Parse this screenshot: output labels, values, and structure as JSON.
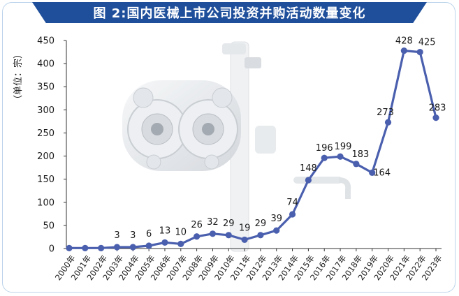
{
  "title": "图 2:国内医械上市公司投资并购活动数量变化",
  "chart_data": {
    "type": "line",
    "title": "图 2:国内医械上市公司投资并购活动数量变化",
    "ylabel": "（单位：宗）",
    "xlabel": "",
    "ylim": [
      0,
      450
    ],
    "yticks": [
      "0",
      "50",
      "100",
      "150",
      "200",
      "250",
      "300",
      "350",
      "400",
      "450"
    ],
    "grid": false,
    "categories": [
      "2000年",
      "2001年",
      "2002年",
      "2003年",
      "2004年",
      "2005年",
      "2006年",
      "2007年",
      "2008年",
      "2009年",
      "2010年",
      "2011年",
      "2012年",
      "2013年",
      "2014年",
      "2015年",
      "2016年",
      "2017年",
      "2018年",
      "2019年",
      "2020年",
      "2021年",
      "2022年",
      "2023年"
    ],
    "values": [
      1,
      1,
      1,
      3,
      3,
      6,
      13,
      10,
      26,
      32,
      29,
      19,
      29,
      39,
      74,
      148,
      196,
      199,
      183,
      164,
      273,
      428,
      425,
      283
    ],
    "data_labels": [
      "",
      "",
      "",
      "3",
      "3",
      "6",
      "13",
      "10",
      "26",
      "32",
      "29",
      "19",
      "29",
      "39",
      "74",
      "148",
      "196",
      "199",
      "183",
      "164",
      "273",
      "428",
      "425",
      "283"
    ],
    "line_color": "#4a5fae",
    "accent_color": "#1f4f9b"
  }
}
